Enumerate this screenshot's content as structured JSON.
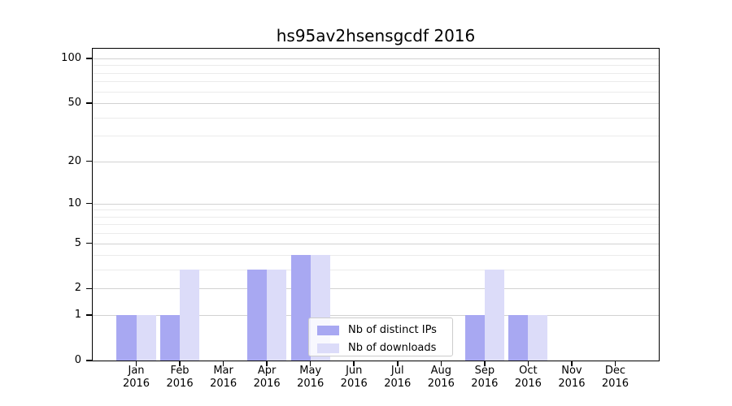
{
  "chart_data": {
    "type": "bar",
    "title": "hs95av2hsensgcdf 2016",
    "categories": [
      "Jan",
      "Feb",
      "Mar",
      "Apr",
      "May",
      "Jun",
      "Jul",
      "Aug",
      "Sep",
      "Oct",
      "Nov",
      "Dec"
    ],
    "category_year": "2016",
    "series": [
      {
        "name": "Nb of distinct IPs",
        "color": "#a8a8f2",
        "values": [
          1,
          1,
          0,
          3,
          4,
          0,
          0,
          0,
          1,
          1,
          0,
          0
        ]
      },
      {
        "name": "Nb of downloads",
        "color": "#dcdcf9",
        "values": [
          1,
          3,
          0,
          3,
          4,
          0,
          0,
          0,
          3,
          1,
          0,
          0
        ]
      }
    ],
    "yscale": "log1p",
    "ylim": [
      0,
      116
    ],
    "yticks": [
      0,
      1,
      2,
      5,
      10,
      20,
      50,
      100
    ],
    "minor_gridlines": [
      3,
      4,
      6,
      7,
      8,
      9,
      30,
      40,
      60,
      70,
      80,
      90
    ],
    "xlabel": "",
    "ylabel": "",
    "grid": true,
    "legend_position": "lower center"
  }
}
